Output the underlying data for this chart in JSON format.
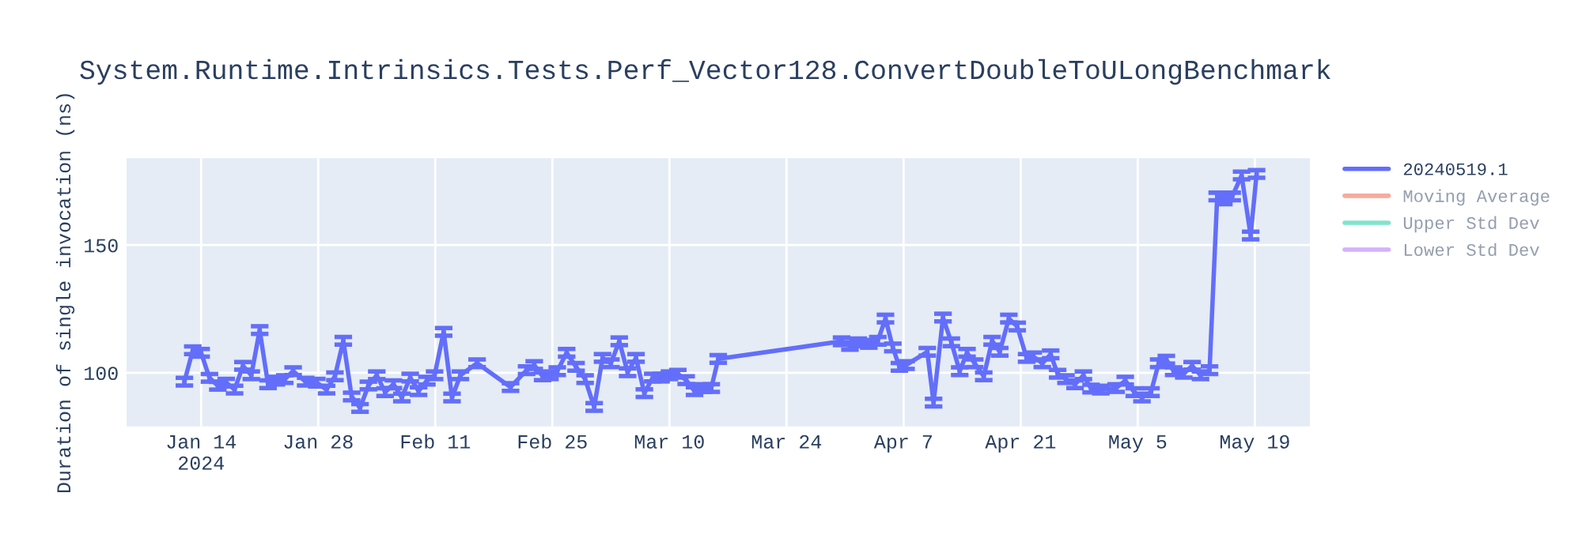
{
  "chart_data": {
    "type": "line",
    "title": "System.Runtime.Intrinsics.Tests.Perf_Vector128.ConvertDoubleToULongBenchmark",
    "ylabel": "Duration of single invocation (ns)",
    "x": [
      "2024-01-12",
      "2024-01-13",
      "2024-01-14",
      "2024-01-15",
      "2024-01-16",
      "2024-01-17",
      "2024-01-18",
      "2024-01-19",
      "2024-01-20",
      "2024-01-21",
      "2024-01-22",
      "2024-01-23",
      "2024-01-24",
      "2024-01-25",
      "2024-01-26T12:00",
      "2024-01-27T20:00",
      "2024-01-29",
      "2024-01-30",
      "2024-01-31",
      "2024-02-01",
      "2024-02-02",
      "2024-02-03",
      "2024-02-04",
      "2024-02-05",
      "2024-02-06",
      "2024-02-07",
      "2024-02-08",
      "2024-02-09",
      "2024-02-10",
      "2024-02-10T22:00",
      "2024-02-12",
      "2024-02-13",
      "2024-02-14",
      "2024-02-16",
      "2024-02-20",
      "2024-02-21T22:00",
      "2024-02-22T20:00",
      "2024-02-23T20:00",
      "2024-02-24T17:00",
      "2024-02-25T14:00",
      "2024-02-26T17:00",
      "2024-02-27T20:00",
      "2024-02-28T22:00",
      "2024-03-01",
      "2024-03-02",
      "2024-03-03",
      "2024-03-04",
      "2024-03-05",
      "2024-03-06",
      "2024-03-07",
      "2024-03-08",
      "2024-03-09",
      "2024-03-10",
      "2024-03-11",
      "2024-03-12",
      "2024-03-13",
      "2024-03-14",
      "2024-03-15",
      "2024-03-15T20:00",
      "2024-03-30T14:00",
      "2024-03-31T14:00",
      "2024-04-01T14:00",
      "2024-04-02T20:00",
      "2024-04-03T22:00",
      "2024-04-04T20:00",
      "2024-04-05T17:00",
      "2024-04-06T12:00",
      "2024-04-07T07:00",
      "2024-04-09T20:00",
      "2024-04-10T14:00",
      "2024-04-11T17:00",
      "2024-04-12T17:00",
      "2024-04-13T17:00",
      "2024-04-14T14:00",
      "2024-04-15T12:00",
      "2024-04-16T14:00",
      "2024-04-17T14:00",
      "2024-04-18T12:00",
      "2024-04-19T14:00",
      "2024-04-20T14:00",
      "2024-04-21T17:00",
      "2024-04-22T12:00",
      "2024-04-23T14:00",
      "2024-04-24T14:00",
      "2024-04-25T10:00",
      "2024-04-26T10:00",
      "2024-04-27T12:00",
      "2024-04-28T12:00",
      "2024-04-29T10:00",
      "2024-04-30T14:00",
      "2024-05-02T10:00",
      "2024-05-03T12:00",
      "2024-05-04T14:00",
      "2024-05-05T12:00",
      "2024-05-06T14:00",
      "2024-05-07T12:00",
      "2024-05-08T10:00",
      "2024-05-09T07:00",
      "2024-05-10T12:00",
      "2024-05-11T12:00",
      "2024-05-12T12:00",
      "2024-05-13T14:00",
      "2024-05-14T12:00",
      "2024-05-15T07:00",
      "2024-05-16T07:00",
      "2024-05-17T10:00",
      "2024-05-18T12:00",
      "2024-05-19T05:00"
    ],
    "series": [
      {
        "name": "20240519.1",
        "color": "#636efa",
        "values": [
          96.5,
          108.8,
          107.8,
          98,
          94.9,
          96.1,
          93.4,
          102.7,
          99,
          116.7,
          95.5,
          96.9,
          97.5,
          100.6,
          96.5,
          96.1,
          93.4,
          98.6,
          112.5,
          90.7,
          86.2,
          95,
          99,
          92.4,
          95.5,
          90.3,
          98.1,
          92.8,
          96.9,
          99,
          116,
          90.3,
          99,
          103.7,
          94.4,
          101,
          103,
          98.6,
          99,
          100.6,
          107.8,
          102.3,
          97.5,
          86.6,
          105.8,
          103.7,
          112.3,
          100.2,
          105.8,
          92,
          98.1,
          98.1,
          99,
          99.6,
          97.1,
          92.8,
          94,
          94,
          105.4,
          112.3,
          110.5,
          111.9,
          111.3,
          112.5,
          121.2,
          109.9,
          102.3,
          103,
          108.2,
          88.3,
          121.6,
          111.9,
          100.6,
          107.8,
          103.7,
          98.6,
          112.5,
          108.2,
          121.2,
          118.1,
          105.8,
          106.4,
          103.7,
          107.2,
          99.6,
          97.5,
          95.5,
          99,
          93.8,
          93.4,
          94,
          96.9,
          92.4,
          90.3,
          92.4,
          103.7,
          105.1,
          100.6,
          99.6,
          102.7,
          99,
          101,
          169,
          167.5,
          169,
          177.2,
          153.7,
          177.8
        ],
        "errors": [
          1.5,
          1.5,
          1.5,
          1.5,
          1.5,
          1.5,
          1.5,
          1.5,
          1.5,
          1.5,
          1.5,
          1.5,
          1.5,
          1.5,
          1.5,
          1.5,
          1.5,
          1.5,
          1.5,
          1.5,
          1.5,
          1.5,
          1.5,
          1.5,
          1.5,
          1.5,
          1.5,
          1.5,
          1.5,
          1.5,
          1.5,
          1.5,
          1.5,
          1.5,
          1.5,
          1.5,
          1.5,
          1.5,
          1.5,
          1.5,
          1.5,
          1.5,
          1.5,
          1.5,
          1.5,
          1.5,
          1.5,
          1.5,
          1.5,
          1.5,
          1.5,
          1.5,
          1.5,
          1.5,
          1.5,
          1.5,
          1.5,
          1.5,
          1.5,
          1.5,
          1.5,
          1.5,
          1.5,
          1.5,
          1.5,
          1.5,
          1.5,
          1.5,
          1.5,
          1.5,
          1.5,
          1.5,
          1.5,
          1.5,
          1.5,
          1.5,
          1.5,
          1.5,
          1.5,
          1.5,
          1.5,
          1.5,
          1.5,
          1.5,
          1.5,
          1.5,
          1.5,
          1.5,
          1.5,
          1.5,
          1.5,
          1.5,
          1.5,
          1.5,
          1.5,
          1.5,
          1.5,
          1.5,
          1.5,
          1.5,
          1.5,
          1.5,
          1.5,
          1.5,
          1.5,
          1.5,
          1.5,
          1.5
        ]
      },
      {
        "name": "Moving Average",
        "color": "#ef553b",
        "values": [
          null,
          null,
          null,
          null,
          null,
          null,
          null,
          null,
          null,
          null,
          null,
          null,
          null,
          null,
          null,
          null,
          null,
          null,
          null,
          null,
          null,
          null,
          null,
          null,
          null,
          null,
          null,
          null,
          null,
          null,
          null,
          null,
          null,
          null,
          null,
          null,
          null,
          null,
          null,
          null,
          null,
          null,
          null,
          null,
          null,
          null,
          null,
          null,
          null,
          null,
          null,
          null,
          null,
          null,
          null,
          null,
          null,
          null,
          null,
          null,
          null,
          null,
          null,
          null,
          null,
          null,
          null,
          null,
          null,
          null,
          null,
          null,
          null,
          null,
          null,
          null,
          null,
          null,
          null,
          null,
          null,
          null,
          null,
          null,
          null,
          null,
          null,
          null,
          null,
          null,
          null,
          null,
          null,
          null,
          null,
          null,
          null,
          null,
          null,
          null,
          null,
          null,
          null,
          null,
          null,
          null,
          null,
          null
        ]
      },
      {
        "name": "Upper Std Dev",
        "color": "#00cc96",
        "values": [
          null,
          null,
          null,
          null,
          null,
          null,
          null,
          null,
          null,
          null,
          null,
          null,
          null,
          null,
          null,
          null,
          null,
          null,
          null,
          null,
          null,
          null,
          null,
          null,
          null,
          null,
          null,
          null,
          null,
          null,
          null,
          null,
          null,
          null,
          null,
          null,
          null,
          null,
          null,
          null,
          null,
          null,
          null,
          null,
          null,
          null,
          null,
          null,
          null,
          null,
          null,
          null,
          null,
          null,
          null,
          null,
          null,
          null,
          null,
          null,
          null,
          null,
          null,
          null,
          null,
          null,
          null,
          null,
          null,
          null,
          null,
          null,
          null,
          null,
          null,
          null,
          null,
          null,
          null,
          null,
          null,
          null,
          null,
          null,
          null,
          null,
          null,
          null,
          null,
          null,
          null,
          null,
          null,
          null,
          null,
          null,
          null,
          null,
          null,
          null,
          null,
          null,
          null,
          null,
          null,
          null,
          null,
          null
        ]
      },
      {
        "name": "Lower Std Dev",
        "color": "#ab63fa",
        "values": [
          null,
          null,
          null,
          null,
          null,
          null,
          null,
          null,
          null,
          null,
          null,
          null,
          null,
          null,
          null,
          null,
          null,
          null,
          null,
          null,
          null,
          null,
          null,
          null,
          null,
          null,
          null,
          null,
          null,
          null,
          null,
          null,
          null,
          null,
          null,
          null,
          null,
          null,
          null,
          null,
          null,
          null,
          null,
          null,
          null,
          null,
          null,
          null,
          null,
          null,
          null,
          null,
          null,
          null,
          null,
          null,
          null,
          null,
          null,
          null,
          null,
          null,
          null,
          null,
          null,
          null,
          null,
          null,
          null,
          null,
          null,
          null,
          null,
          null,
          null,
          null,
          null,
          null,
          null,
          null,
          null,
          null,
          null,
          null,
          null,
          null,
          null,
          null,
          null,
          null,
          null,
          null,
          null,
          null,
          null,
          null,
          null,
          null,
          null,
          null,
          null,
          null,
          null,
          null,
          null,
          null,
          null,
          null
        ]
      }
    ],
    "xlim": [
      "2024-01-05T02:00",
      "2024-05-25T14:00"
    ],
    "xticks": [
      {
        "value": "2024-01-14",
        "label": "Jan 14\n2024"
      },
      {
        "value": "2024-01-28",
        "label": "Jan 28"
      },
      {
        "value": "2024-02-11",
        "label": "Feb 11"
      },
      {
        "value": "2024-02-25",
        "label": "Feb 25"
      },
      {
        "value": "2024-03-10",
        "label": "Mar 10"
      },
      {
        "value": "2024-03-24",
        "label": "Mar 24"
      },
      {
        "value": "2024-04-07",
        "label": "Apr 7"
      },
      {
        "value": "2024-04-21",
        "label": "Apr 21"
      },
      {
        "value": "2024-05-05",
        "label": "May 5"
      },
      {
        "value": "2024-05-19",
        "label": "May 19"
      }
    ],
    "ylim": [
      79,
      184
    ],
    "yticks": [
      100,
      150
    ],
    "grid": true,
    "legend": "right",
    "marker": "none",
    "line_style": "solid"
  }
}
